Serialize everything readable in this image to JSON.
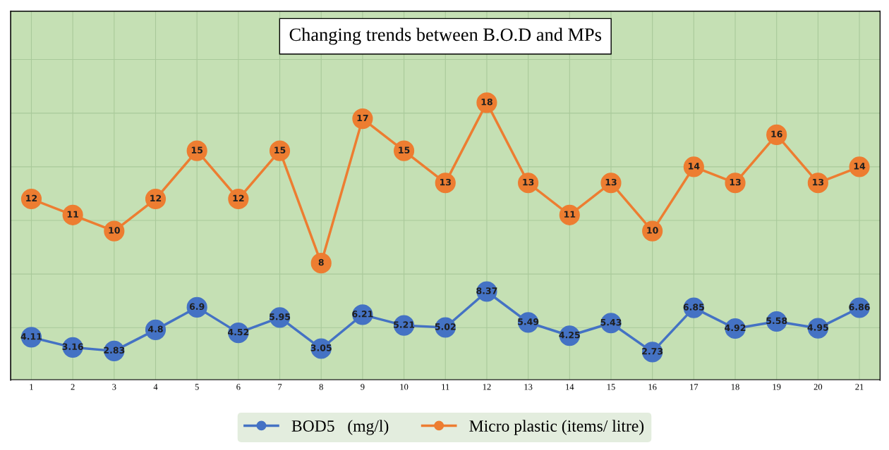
{
  "chart_data": {
    "type": "line",
    "title": "Changing trends between B.O.D and MPs",
    "categories": [
      "1",
      "2",
      "3",
      "4",
      "5",
      "6",
      "7",
      "8",
      "9",
      "10",
      "11",
      "12",
      "13",
      "14",
      "15",
      "16",
      "17",
      "18",
      "19",
      "20",
      "21"
    ],
    "series": [
      {
        "name": "BOD5   (mg/l)",
        "color": "#4472c4",
        "values": [
          4.11,
          3.16,
          2.83,
          4.8,
          6.9,
          4.52,
          5.95,
          3.05,
          6.21,
          5.21,
          5.02,
          8.37,
          5.49,
          4.25,
          5.43,
          2.73,
          6.85,
          4.92,
          5.58,
          4.95,
          6.86
        ]
      },
      {
        "name": "Micro plastic (items/ litre)",
        "color": "#ed7d31",
        "axis": "y2",
        "values": [
          12,
          11,
          10,
          12,
          15,
          12,
          15,
          8,
          17,
          15,
          13,
          18,
          13,
          11,
          13,
          10,
          14,
          13,
          16,
          13,
          14
        ]
      }
    ],
    "ylim": [
      0.1,
      34.5
    ],
    "y2lim": [
      0.7,
      23.7
    ],
    "tick_labels": "x",
    "grid": true,
    "legend": "bottom",
    "marker": "circle",
    "line_style": "solid",
    "data_labels": true
  }
}
